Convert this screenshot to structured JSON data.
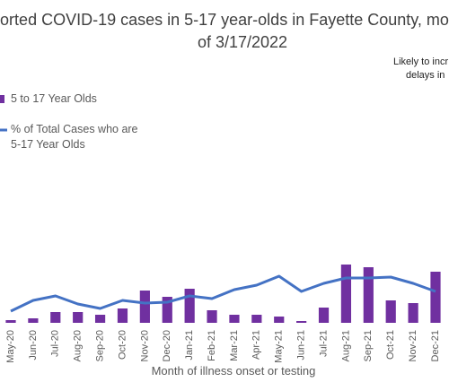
{
  "chart_data": {
    "type": "bar_line",
    "title": [
      "orted COVID-19 cases in 5-17 year-olds in Fayette County, mo",
      "of 3/17/2022"
    ],
    "annotation": [
      "Likely to incr",
      "delays in"
    ],
    "x_label": "Month of illness onset or testing",
    "categories": [
      "May-20",
      "Jun-20",
      "Jul-20",
      "Aug-20",
      "Sep-20",
      "Oct-20",
      "Nov-20",
      "Dec-20",
      "Jan-21",
      "Feb-21",
      "Mar-21",
      "Apr-21",
      "May-21",
      "Jun-21",
      "Jul-21",
      "Aug-21",
      "Sep-21",
      "Oct-21",
      "Nov-21",
      "Dec-21"
    ],
    "series": [
      {
        "name": "5 to 17 Year Olds",
        "type": "bar",
        "color": "#7030a0",
        "values": [
          3,
          5,
          12,
          12,
          9,
          16,
          36,
          29,
          38,
          14,
          9,
          9,
          7,
          2,
          17,
          65,
          62,
          25,
          22,
          57
        ]
      },
      {
        "name": "% of Total Cases who are 5-17 Year Olds",
        "type": "line",
        "color": "#4472c4",
        "axis": "y2",
        "values": [
          13,
          25,
          30,
          21,
          16,
          25,
          22,
          23,
          30,
          27,
          37,
          42,
          52,
          35,
          44,
          50,
          50,
          51,
          44,
          35
        ]
      }
    ],
    "ylim": [
      0,
      100
    ],
    "y2lim": [
      0,
      100
    ]
  }
}
